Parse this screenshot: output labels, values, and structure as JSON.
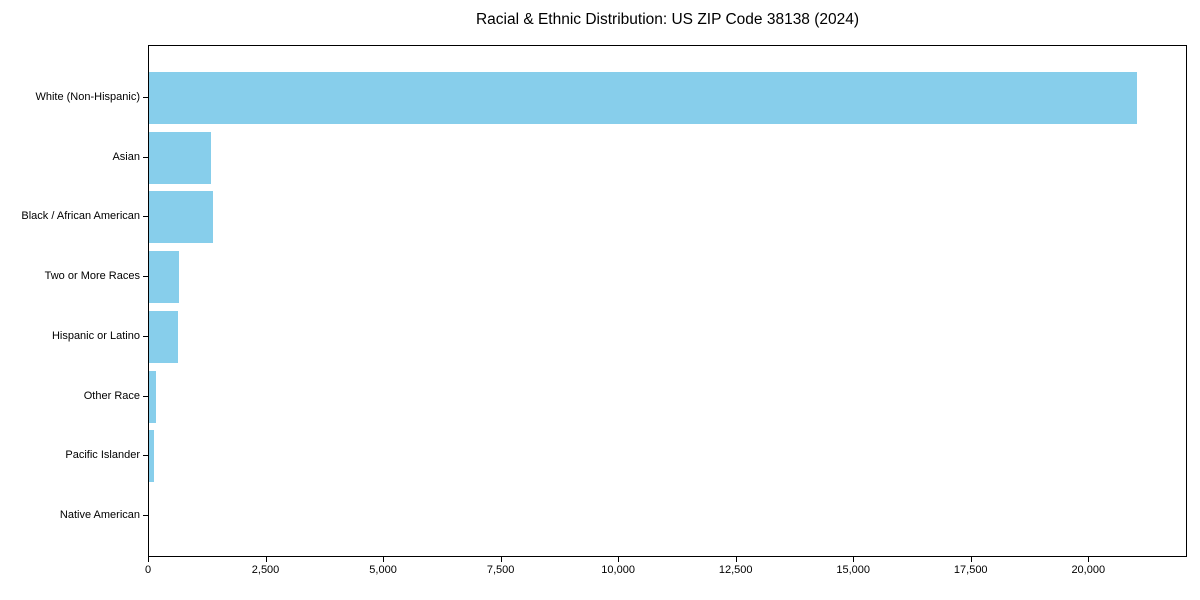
{
  "chart_data": {
    "type": "bar",
    "orientation": "horizontal",
    "title": "Racial & Ethnic Distribution: US ZIP Code 38138 (2024)",
    "categories": [
      "White (Non-Hispanic)",
      "Asian",
      "Black / African American",
      "Two or More Races",
      "Hispanic or Latino",
      "Other Race",
      "Pacific Islander",
      "Native American"
    ],
    "values": [
      21050,
      1325,
      1365,
      640,
      620,
      140,
      100,
      0
    ],
    "xlabel": "",
    "ylabel": "",
    "xlim": [
      0,
      22100
    ],
    "xticks": [
      0,
      2500,
      5000,
      7500,
      10000,
      12500,
      15000,
      17500,
      20000
    ],
    "xtick_labels": [
      "0",
      "2,500",
      "5,000",
      "7,500",
      "10,000",
      "12,500",
      "15,000",
      "17,500",
      "20,000"
    ],
    "bar_color": "#87CEEB",
    "background_color": "#FFFFFF",
    "text_color": "#000000",
    "grid": false,
    "legend": null
  }
}
